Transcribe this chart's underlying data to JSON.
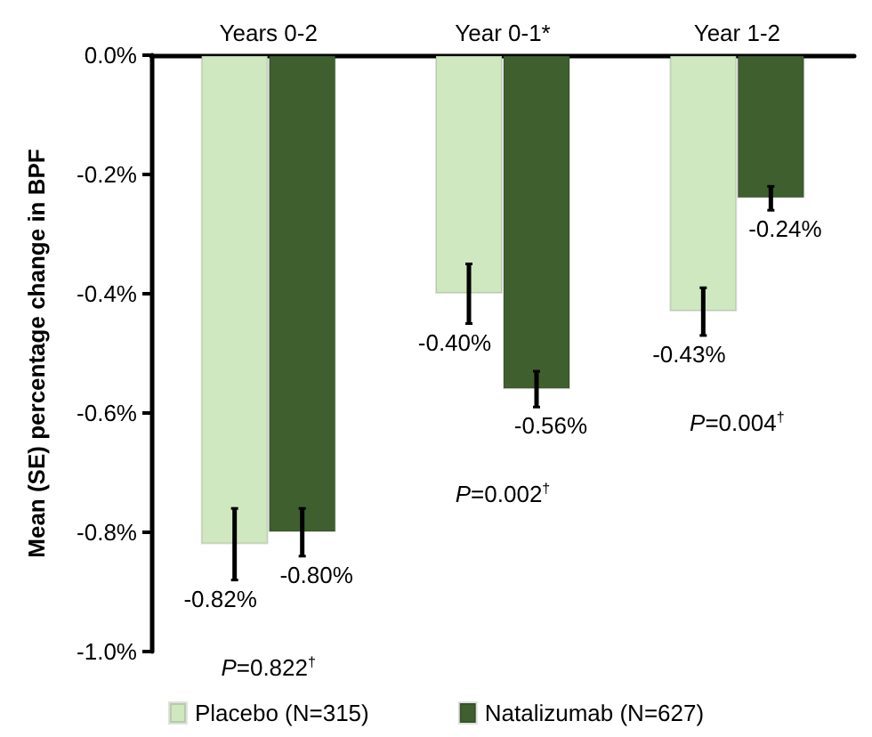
{
  "chart_data": {
    "type": "bar",
    "ylabel": "Mean (SE) percentage change in BPF",
    "categories": [
      "Years 0-2",
      "Year 0-1*",
      "Year 1-2"
    ],
    "series": [
      {
        "name": "Placebo (N=315)",
        "color": "#cfe8bf",
        "values": [
          -0.82,
          -0.4,
          -0.43
        ],
        "errors": [
          0.06,
          0.05,
          0.04
        ],
        "value_labels": [
          "-0.82%",
          "-0.40%",
          "-0.43%"
        ]
      },
      {
        "name": "Natalizumab (N=627)",
        "color": "#3f5f2f",
        "values": [
          -0.8,
          -0.56,
          -0.24
        ],
        "errors": [
          0.04,
          0.03,
          0.02
        ],
        "value_labels": [
          "-0.80%",
          "-0.56%",
          "-0.24%"
        ]
      }
    ],
    "ylim": [
      -1.0,
      0
    ],
    "yticks": [
      {
        "value": 0,
        "label": "0.0%"
      },
      {
        "value": -0.2,
        "label": "-0.2%"
      },
      {
        "value": -0.4,
        "label": "-0.4%"
      },
      {
        "value": -0.6,
        "label": "-0.6%"
      },
      {
        "value": -0.8,
        "label": "-0.8%"
      },
      {
        "value": -1.0,
        "label": "-1.0%"
      }
    ],
    "annotations": [
      "P=0.822$^{†}$",
      "P=0.002$^{†}$",
      "P=0.004$^{†}$"
    ],
    "grid": false,
    "legend": "bottom"
  }
}
